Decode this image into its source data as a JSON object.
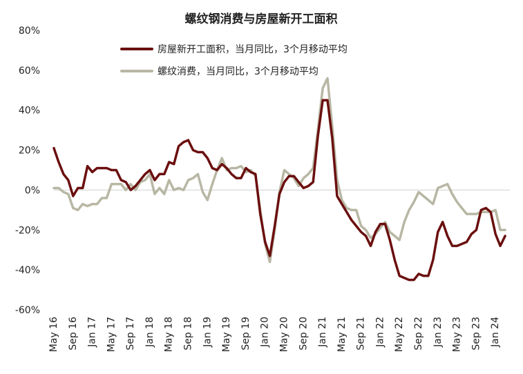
{
  "chart_data": {
    "type": "line",
    "title": "螺纹钢消费与房屋新开工面积",
    "xlabel": "",
    "ylabel": "",
    "ylim": [
      -60,
      80
    ],
    "y_ticks": [
      80,
      60,
      40,
      20,
      0,
      -20,
      -40,
      -60
    ],
    "y_tick_labels": [
      "80%",
      "60%",
      "40%",
      "20%",
      "0%",
      "-20%",
      "-40%",
      "-60%"
    ],
    "x_tick_labels": [
      "May 16",
      "Sep 16",
      "Jan 17",
      "May 17",
      "Sep 17",
      "Jan 18",
      "May 18",
      "Sep 18",
      "Jan 19",
      "May 19",
      "Sep 19",
      "Jan 20",
      "May 20",
      "Sep 20",
      "Jan 21",
      "May 21",
      "Sep 21",
      "Jan 22",
      "May 22",
      "Sep 22",
      "Jan 23",
      "May 23",
      "Sep 23",
      "Jan 24"
    ],
    "x_tick_positions": [
      0,
      4,
      8,
      12,
      16,
      20,
      24,
      28,
      32,
      36,
      40,
      44,
      48,
      52,
      56,
      60,
      64,
      68,
      72,
      76,
      80,
      84,
      88,
      92
    ],
    "x_range": [
      0,
      95
    ],
    "zero_line": true,
    "grid": false,
    "legend_position": "top-center",
    "series": [
      {
        "name": "房屋新开工面积，当月同比，3个月移动平均",
        "color": "#6b0f0f",
        "values": [
          21,
          14,
          8,
          5,
          -3,
          1,
          1,
          12,
          9,
          11,
          11,
          11,
          10,
          10,
          5,
          4,
          0,
          2,
          5,
          8,
          10,
          5,
          8,
          8,
          14,
          13,
          22,
          24,
          25,
          20,
          19,
          19,
          16,
          11,
          10,
          13,
          11,
          8,
          6,
          6,
          11,
          9,
          8,
          -12,
          -26,
          -33,
          -18,
          -2,
          4,
          7,
          7,
          4,
          1,
          2,
          4,
          27,
          45,
          45,
          26,
          -3,
          -7,
          -11,
          -15,
          -18,
          -21,
          -23,
          -28,
          -21,
          -17,
          -17,
          -25,
          -35,
          -43,
          -44,
          -45,
          -45,
          -42,
          -43,
          -43,
          -35,
          -21,
          -16,
          -23,
          -28,
          -28,
          -27,
          -26,
          -22,
          -20,
          -10,
          -9,
          -11,
          -22,
          -28,
          -23
        ]
      },
      {
        "name": "螺纹消费，当月同比，3个月移动平均",
        "color": "#b8b7a4",
        "values": [
          1,
          1,
          -1,
          -2,
          -9,
          -10,
          -7,
          -8,
          -7,
          -7,
          -4,
          -4,
          3,
          3,
          3,
          0,
          3,
          0,
          4,
          5,
          8,
          -2,
          1,
          -2,
          5,
          0,
          1,
          0,
          5,
          6,
          8,
          -1,
          -5,
          3,
          10,
          16,
          10,
          11,
          11,
          12,
          9,
          10,
          7,
          -10,
          -27,
          -36,
          -20,
          -1,
          10,
          8,
          6,
          2,
          6,
          8,
          11,
          30,
          51,
          56,
          32,
          5,
          -5,
          -9,
          -10,
          -10,
          -18,
          -20,
          -24,
          -22,
          -19,
          -16,
          -21,
          -23,
          -25,
          -16,
          -10,
          -6,
          -1,
          -3,
          -5,
          -7,
          1,
          2,
          3,
          -2,
          -6,
          -9,
          -12,
          -12,
          -12,
          -11,
          -11,
          -11,
          -10,
          -20,
          -20
        ]
      }
    ]
  }
}
